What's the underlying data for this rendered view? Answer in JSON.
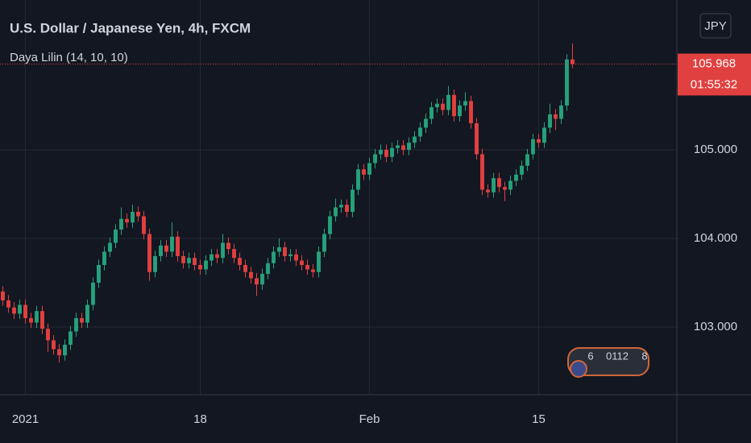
{
  "chart_data": {
    "type": "candlestick",
    "title": "U.S. Dollar / Japanese Yen, 4h, FXCM",
    "indicator": "Daya Lilin (14, 10, 10)",
    "currency": "JPY",
    "countdown": "01:55:32",
    "badge": [
      "6",
      "0112",
      "8"
    ],
    "up_color": "#26a17b",
    "down_color": "#e0403f",
    "ylim": [
      102.236,
      106.691
    ],
    "yticks": [
      {
        "value": 103,
        "label": "103.000"
      },
      {
        "value": 104,
        "label": "104.000"
      },
      {
        "value": 105,
        "label": "105.000"
      }
    ],
    "xlim": [
      -0.5,
      119.5
    ],
    "xticks": [
      {
        "value": 4,
        "label": "2021"
      },
      {
        "value": 35,
        "label": "18"
      },
      {
        "value": 65,
        "label": "Feb"
      },
      {
        "value": 95,
        "label": "15"
      }
    ],
    "grid": true,
    "open": [
      103.4,
      103.3,
      103.22,
      103.15,
      103.25,
      103.1,
      103.05,
      103.18,
      102.98,
      102.85,
      102.75,
      102.68,
      102.8,
      102.95,
      103.1,
      103.05,
      103.25,
      103.5,
      103.7,
      103.85,
      103.95,
      104.1,
      104.22,
      104.18,
      104.3,
      104.25,
      104.05,
      103.62,
      103.8,
      103.92,
      103.85,
      104.02,
      103.8,
      103.72,
      103.78,
      103.7,
      103.65,
      103.75,
      103.82,
      103.78,
      103.95,
      103.88,
      103.78,
      103.7,
      103.62,
      103.55,
      103.48,
      103.6,
      103.72,
      103.85,
      103.9,
      103.8,
      103.82,
      103.75,
      103.7,
      103.65,
      103.62,
      103.85,
      104.05,
      104.25,
      104.35,
      104.38,
      104.3,
      104.55,
      104.78,
      104.72,
      104.85,
      104.95,
      105.0,
      104.92,
      105.02,
      105.05,
      105.0,
      105.08,
      105.15,
      105.25,
      105.35,
      105.48,
      105.52,
      105.45,
      105.62,
      105.38,
      105.5,
      105.55,
      105.3,
      104.95,
      104.55,
      104.52,
      104.68,
      104.58,
      104.55,
      104.65,
      104.72,
      104.82,
      104.95,
      105.12,
      105.08,
      105.25,
      105.4,
      105.35,
      105.5,
      106.02
    ],
    "high": [
      103.46,
      103.36,
      103.28,
      103.31,
      103.31,
      103.16,
      103.24,
      103.24,
      103.04,
      102.91,
      102.81,
      102.86,
      103.01,
      103.16,
      103.16,
      103.31,
      103.56,
      103.76,
      103.91,
      104.01,
      104.16,
      104.35,
      104.28,
      104.38,
      104.36,
      104.31,
      104.11,
      103.86,
      103.98,
      103.98,
      104.18,
      104.08,
      103.86,
      103.84,
      103.84,
      103.76,
      103.81,
      103.88,
      103.88,
      104.05,
      104.01,
      103.94,
      103.84,
      103.76,
      103.68,
      103.61,
      103.66,
      103.78,
      103.91,
      104.0,
      103.96,
      103.88,
      103.88,
      103.81,
      103.76,
      103.71,
      103.91,
      104.11,
      104.31,
      104.45,
      104.44,
      104.44,
      104.61,
      104.84,
      104.84,
      104.91,
      105.01,
      105.06,
      105.06,
      105.08,
      105.11,
      105.11,
      105.14,
      105.21,
      105.31,
      105.41,
      105.54,
      105.58,
      105.58,
      105.72,
      105.68,
      105.56,
      105.65,
      105.61,
      105.36,
      105.01,
      104.61,
      104.74,
      104.74,
      104.64,
      104.71,
      104.78,
      104.88,
      105.01,
      105.18,
      105.18,
      105.31,
      105.52,
      105.46,
      105.56,
      106.08,
      106.2
    ],
    "low": [
      103.24,
      103.16,
      103.09,
      103.09,
      103.04,
      102.99,
      102.99,
      102.92,
      102.72,
      102.69,
      102.6,
      102.62,
      102.74,
      102.89,
      102.99,
      102.99,
      103.19,
      103.44,
      103.64,
      103.79,
      103.89,
      104.04,
      104.12,
      104.12,
      104.19,
      103.99,
      103.52,
      103.56,
      103.74,
      103.79,
      103.79,
      103.74,
      103.66,
      103.66,
      103.64,
      103.59,
      103.59,
      103.69,
      103.72,
      103.72,
      103.82,
      103.72,
      103.64,
      103.56,
      103.49,
      103.35,
      103.42,
      103.54,
      103.66,
      103.79,
      103.74,
      103.74,
      103.69,
      103.64,
      103.59,
      103.56,
      103.56,
      103.79,
      103.99,
      104.19,
      104.29,
      104.24,
      104.24,
      104.49,
      104.66,
      104.66,
      104.79,
      104.89,
      104.86,
      104.86,
      104.96,
      104.94,
      104.94,
      105.02,
      105.09,
      105.19,
      105.29,
      105.42,
      105.39,
      105.39,
      105.32,
      105.32,
      105.44,
      105.24,
      104.89,
      104.49,
      104.46,
      104.46,
      104.52,
      104.42,
      104.49,
      104.59,
      104.66,
      104.76,
      104.89,
      105.02,
      105.02,
      105.19,
      105.22,
      105.29,
      105.44,
      105.92
    ],
    "close": [
      103.3,
      103.22,
      103.15,
      103.25,
      103.1,
      103.05,
      103.18,
      102.98,
      102.85,
      102.75,
      102.68,
      102.8,
      102.95,
      103.1,
      103.05,
      103.25,
      103.5,
      103.7,
      103.85,
      103.95,
      104.1,
      104.22,
      104.18,
      104.3,
      104.25,
      104.05,
      103.62,
      103.8,
      103.92,
      103.85,
      104.02,
      103.8,
      103.72,
      103.78,
      103.7,
      103.65,
      103.75,
      103.82,
      103.78,
      103.95,
      103.88,
      103.78,
      103.7,
      103.62,
      103.55,
      103.48,
      103.6,
      103.72,
      103.85,
      103.9,
      103.8,
      103.82,
      103.75,
      103.7,
      103.65,
      103.62,
      103.85,
      104.05,
      104.25,
      104.35,
      104.38,
      104.3,
      104.55,
      104.78,
      104.72,
      104.85,
      104.95,
      105.0,
      104.92,
      105.02,
      105.05,
      105.0,
      105.08,
      105.15,
      105.25,
      105.35,
      105.48,
      105.52,
      105.45,
      105.62,
      105.38,
      105.5,
      105.55,
      105.3,
      104.95,
      104.55,
      104.52,
      104.68,
      104.58,
      104.55,
      104.65,
      104.72,
      104.82,
      104.95,
      105.12,
      105.08,
      105.25,
      105.4,
      105.35,
      105.5,
      106.02,
      105.968
    ]
  }
}
